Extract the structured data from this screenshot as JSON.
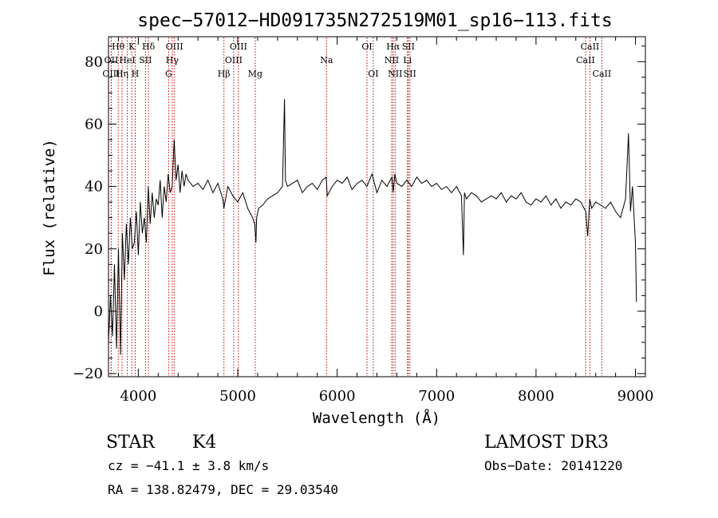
{
  "chart_data": {
    "type": "line",
    "title": "spec−57012−HD091735N272519M01_sp16−113.fits",
    "xlabel": "Wavelength (Å)",
    "ylabel": "Flux (relative)",
    "xlim": [
      3700,
      9100
    ],
    "ylim": [
      -21,
      88
    ],
    "xticks": [
      4000,
      5000,
      6000,
      7000,
      8000,
      9000
    ],
    "yticks": [
      -20,
      0,
      20,
      40,
      60,
      80
    ],
    "xtick_labels": [
      "4000",
      "5000",
      "6000",
      "7000",
      "8000",
      "9000"
    ],
    "ytick_labels": [
      "−20",
      "0",
      "20",
      "40",
      "60",
      "80"
    ],
    "series": [
      {
        "name": "flux",
        "x": [
          3700,
          3720,
          3740,
          3760,
          3780,
          3800,
          3820,
          3840,
          3860,
          3880,
          3900,
          3920,
          3940,
          3960,
          3980,
          4000,
          4020,
          4040,
          4060,
          4080,
          4100,
          4120,
          4140,
          4160,
          4180,
          4200,
          4220,
          4240,
          4260,
          4280,
          4300,
          4320,
          4340,
          4360,
          4380,
          4400,
          4420,
          4440,
          4460,
          4480,
          4500,
          4550,
          4600,
          4650,
          4700,
          4750,
          4800,
          4850,
          4860,
          4900,
          4950,
          5000,
          5050,
          5100,
          5150,
          5170,
          5183,
          5190,
          5210,
          5250,
          5300,
          5350,
          5400,
          5450,
          5470,
          5480,
          5500,
          5550,
          5600,
          5650,
          5700,
          5750,
          5800,
          5850,
          5890,
          5900,
          5950,
          6000,
          6050,
          6100,
          6150,
          6200,
          6250,
          6300,
          6350,
          6400,
          6450,
          6500,
          6550,
          6563,
          6580,
          6600,
          6650,
          6700,
          6750,
          6800,
          6850,
          6900,
          6950,
          7000,
          7050,
          7100,
          7150,
          7200,
          7250,
          7270,
          7280,
          7300,
          7350,
          7400,
          7450,
          7500,
          7550,
          7600,
          7650,
          7700,
          7750,
          7800,
          7850,
          7900,
          7950,
          8000,
          8050,
          8100,
          8150,
          8200,
          8250,
          8300,
          8350,
          8400,
          8450,
          8500,
          8520,
          8540,
          8560,
          8600,
          8650,
          8700,
          8750,
          8800,
          8850,
          8900,
          8930,
          8950,
          8970,
          9000,
          9010
        ],
        "values": [
          -10,
          5,
          -8,
          15,
          -12,
          20,
          -14,
          25,
          10,
          28,
          15,
          30,
          20,
          22,
          32,
          18,
          35,
          25,
          30,
          22,
          40,
          28,
          38,
          30,
          36,
          34,
          42,
          30,
          40,
          35,
          44,
          38,
          40,
          55,
          42,
          47,
          38,
          45,
          40,
          44,
          42,
          40,
          41,
          39,
          42,
          38,
          41,
          36,
          33,
          40,
          37,
          35,
          38,
          33,
          30,
          28,
          22,
          30,
          33,
          34,
          36,
          37,
          38,
          40,
          68,
          42,
          40,
          41,
          42,
          38,
          40,
          41,
          39,
          42,
          43,
          37,
          40,
          42,
          41,
          43,
          39,
          41,
          42,
          40,
          44,
          38,
          42,
          40,
          43,
          38,
          44,
          41,
          40,
          42,
          40,
          43,
          41,
          42,
          40,
          41,
          39,
          40,
          38,
          40,
          37,
          18,
          38,
          36,
          38,
          37,
          35,
          36,
          37,
          36,
          38,
          35,
          37,
          36,
          38,
          35,
          34,
          36,
          35,
          37,
          34,
          36,
          33,
          35,
          34,
          36,
          35,
          32,
          24,
          36,
          33,
          35,
          34,
          33,
          35,
          32,
          30,
          36,
          57,
          32,
          40,
          22,
          3
        ]
      }
    ],
    "line_labels": [
      {
        "label": "Hθ",
        "x": 3798,
        "row": 1
      },
      {
        "label": "Hη",
        "x": 3836,
        "row": 3
      },
      {
        "label": "OII",
        "x": 3728,
        "row": 2
      },
      {
        "label": "OIII",
        "x": 3727,
        "row": 3
      },
      {
        "label": "HeI",
        "x": 3889,
        "row": 2
      },
      {
        "label": "K",
        "x": 3934,
        "row": 1
      },
      {
        "label": "H",
        "x": 3969,
        "row": 3
      },
      {
        "label": "SII",
        "x": 4072,
        "row": 2
      },
      {
        "label": "Hδ",
        "x": 4102,
        "row": 1
      },
      {
        "label": "G",
        "x": 4305,
        "row": 3
      },
      {
        "label": "Hγ",
        "x": 4341,
        "row": 2
      },
      {
        "label": "OIII",
        "x": 4364,
        "row": 1
      },
      {
        "label": "Hβ",
        "x": 4861,
        "row": 3
      },
      {
        "label": "OIII",
        "x": 4959,
        "row": 2
      },
      {
        "label": "OIII",
        "x": 5007,
        "row": 1
      },
      {
        "label": "Mg",
        "x": 5176,
        "row": 3
      },
      {
        "label": "Na",
        "x": 5893,
        "row": 2
      },
      {
        "label": "OI",
        "x": 6300,
        "row": 1
      },
      {
        "label": "OI",
        "x": 6363,
        "row": 3
      },
      {
        "label": "NII",
        "x": 6548,
        "row": 2
      },
      {
        "label": "Hα",
        "x": 6563,
        "row": 1
      },
      {
        "label": "NII",
        "x": 6583,
        "row": 3
      },
      {
        "label": "Li",
        "x": 6707,
        "row": 2
      },
      {
        "label": "SII",
        "x": 6716,
        "row": 1
      },
      {
        "label": "SII",
        "x": 6731,
        "row": 3
      },
      {
        "label": "CaII",
        "x": 8498,
        "row": 2
      },
      {
        "label": "CaII",
        "x": 8542,
        "row": 1
      },
      {
        "label": "CaII",
        "x": 8662,
        "row": 3
      }
    ]
  },
  "info": {
    "object_class": "STAR",
    "subclass": "K4",
    "survey": "LAMOST DR3",
    "cz": "cz = −41.1 ± 3.8 km/s",
    "obs_date": "Obs−Date: 20141220",
    "radec": "RA = 138.82479, DEC =  29.03540"
  }
}
